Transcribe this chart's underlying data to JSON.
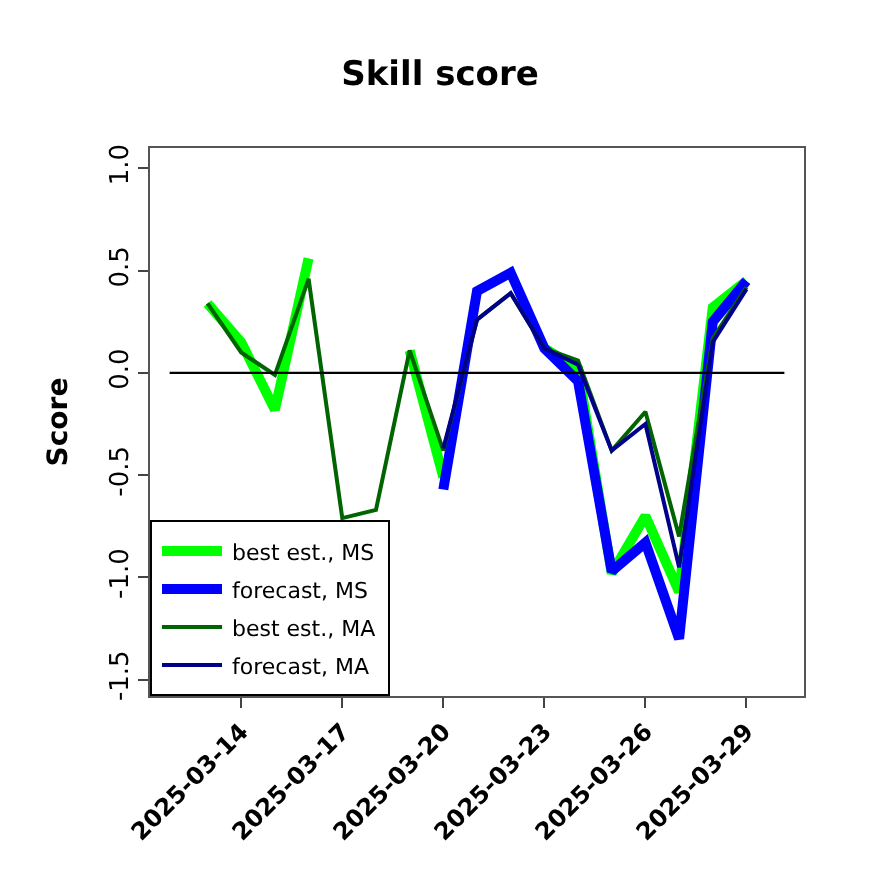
{
  "chart_data": {
    "type": "line",
    "title": "Skill score",
    "ylabel": "Score",
    "x": [
      "2025-03-13",
      "2025-03-14",
      "2025-03-15",
      "2025-03-16",
      "2025-03-17",
      "2025-03-18",
      "2025-03-19",
      "2025-03-20",
      "2025-03-21",
      "2025-03-22",
      "2025-03-23",
      "2025-03-24",
      "2025-03-25",
      "2025-03-26",
      "2025-03-27",
      "2025-03-28",
      "2025-03-29"
    ],
    "series": [
      {
        "name": "best est., MS",
        "color": "#00ff00",
        "values": [
          0.34,
          0.15,
          -0.18,
          0.56,
          null,
          null,
          0.11,
          -0.51,
          null,
          null,
          0.12,
          0.02,
          -0.98,
          -0.7,
          -1.07,
          0.32,
          0.45
        ]
      },
      {
        "name": "forecast, MS",
        "color": "#0000ff",
        "values": [
          null,
          null,
          null,
          null,
          null,
          null,
          null,
          -0.57,
          0.4,
          0.49,
          0.12,
          -0.04,
          -0.97,
          -0.83,
          -1.3,
          0.25,
          0.45
        ]
      },
      {
        "name": "best est., MA",
        "color": "#006400",
        "values": [
          0.34,
          0.1,
          -0.01,
          0.46,
          -0.71,
          -0.67,
          0.11,
          -0.38,
          0.26,
          0.39,
          0.12,
          0.06,
          -0.38,
          -0.19,
          -0.8,
          0.17,
          0.42
        ]
      },
      {
        "name": "forecast, MA",
        "color": "#00008b",
        "values": [
          null,
          null,
          null,
          null,
          null,
          null,
          null,
          -0.37,
          0.26,
          0.39,
          0.12,
          0.04,
          -0.38,
          -0.25,
          -0.95,
          0.15,
          0.41
        ]
      }
    ],
    "xlim": [
      "2025-03-11T07:00",
      "2025-03-30T17:00"
    ],
    "xticks": [
      {
        "value": "2025-03-14",
        "label": "2025-03-14"
      },
      {
        "value": "2025-03-17",
        "label": "2025-03-17"
      },
      {
        "value": "2025-03-20",
        "label": "2025-03-20"
      },
      {
        "value": "2025-03-23",
        "label": "2025-03-23"
      },
      {
        "value": "2025-03-26",
        "label": "2025-03-26"
      },
      {
        "value": "2025-03-29",
        "label": "2025-03-29"
      }
    ],
    "ylim": [
      -1.58,
      1.1
    ],
    "yticks": [
      {
        "value": -1.5,
        "label": "-1.5"
      },
      {
        "value": -1.0,
        "label": "-1.0"
      },
      {
        "value": -0.5,
        "label": "-0.5"
      },
      {
        "value": 0.0,
        "label": "0.0"
      },
      {
        "value": 0.5,
        "label": "0.5"
      },
      {
        "value": 1.0,
        "label": "1.0"
      }
    ],
    "ref_lines": [
      {
        "axis": "y",
        "value": 0,
        "color": "#000000"
      }
    ],
    "legend": "bottom left",
    "marker": "none",
    "line_style": "solid"
  }
}
